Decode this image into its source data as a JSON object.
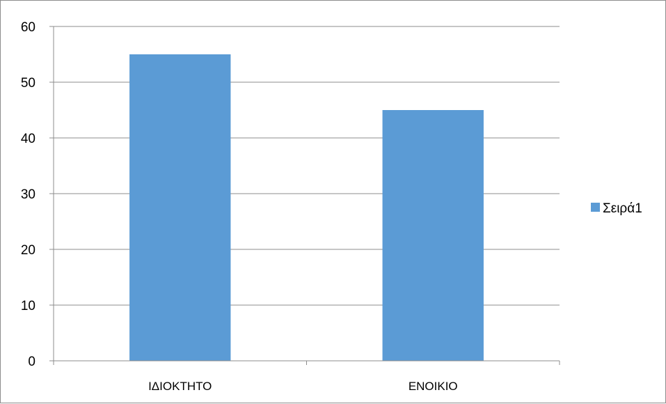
{
  "chart_data": {
    "type": "bar",
    "categories": [
      "ΙΔΙΟΚΤΗΤΟ",
      "ΕΝΟΙΚΙΟ"
    ],
    "series": [
      {
        "name": "Σειρά1",
        "values": [
          55,
          45
        ],
        "color": "#5b9bd5"
      }
    ],
    "ylim": [
      0,
      60
    ],
    "yticks": [
      "0",
      "10",
      "20",
      "30",
      "40",
      "50",
      "60"
    ],
    "grid": true,
    "legend": "right",
    "title": "",
    "xlabel": "",
    "ylabel": ""
  }
}
